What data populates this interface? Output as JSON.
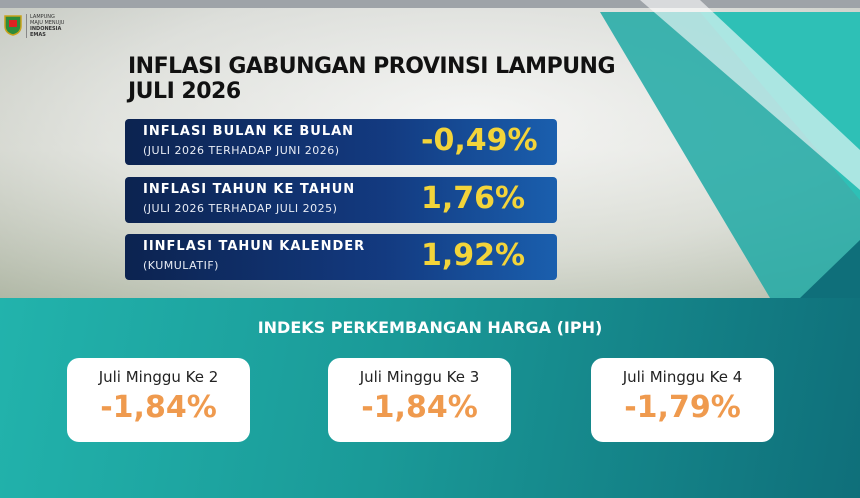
{
  "logo": {
    "lines": [
      "LAMPUNG",
      "MAJU MENUJU",
      "INDONESIA",
      "EMAS"
    ]
  },
  "header": {
    "title_lines": [
      "INFLASI GABUNGAN PROVINSI LAMPUNG",
      "JULI 2026"
    ]
  },
  "inflation": [
    {
      "label": "INFLASI BULAN KE BULAN",
      "sublabel": "(JULI 2026 TERHADAP JUNI 2026)",
      "value": "-0,49%"
    },
    {
      "label": "INFLASI TAHUN KE TAHUN",
      "sublabel": "(JULI 2026 TERHADAP JULI 2025)",
      "value": "1,76%"
    },
    {
      "label": "IINFLASI TAHUN KALENDER",
      "sublabel": "(KUMULATIF)",
      "value": "1,92%"
    }
  ],
  "iph": {
    "title": "INDEKS PERKEMBANGAN HARGA (IPH)",
    "cards": [
      {
        "label": "Juli Minggu Ke 2",
        "value": "-1,84%"
      },
      {
        "label": "Juli Minggu Ke 3",
        "value": "-1,84%"
      },
      {
        "label": "Juli Minggu Ke 4",
        "value": "-1,79%"
      }
    ]
  }
}
